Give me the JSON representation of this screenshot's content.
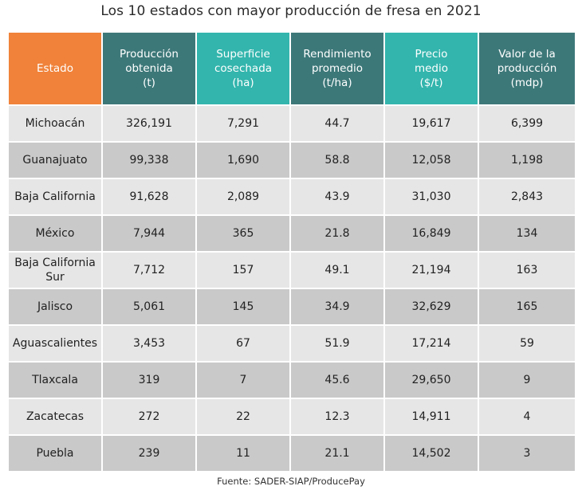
{
  "chart_data": {
    "type": "table",
    "title": "Los 10 estados con mayor producción de fresa en 2021",
    "source": "Fuente: SADER-SIAP/ProducePay",
    "columns": [
      "Estado",
      "Producción\nobtenida\n(t)",
      "Superficie\ncosechada\n(ha)",
      "Rendimiento\npromedio\n(t/ha)",
      "Precio\nmedio\n($/t)",
      "Valor de la\nproducción\n(mdp)"
    ],
    "header_colors": [
      "#f0823a",
      "#3d7879",
      "#33b5ad",
      "#3d7879",
      "#33b5ad",
      "#3d7879"
    ],
    "rows": [
      [
        "Michoacán",
        "326,191",
        "7,291",
        "44.7",
        "19,617",
        "6,399"
      ],
      [
        "Guanajuato",
        "99,338",
        "1,690",
        "58.8",
        "12,058",
        "1,198"
      ],
      [
        "Baja California",
        "91,628",
        "2,089",
        "43.9",
        "31,030",
        "2,843"
      ],
      [
        "México",
        "7,944",
        "365",
        "21.8",
        "16,849",
        "134"
      ],
      [
        "Baja California Sur",
        "7,712",
        "157",
        "49.1",
        "21,194",
        "163"
      ],
      [
        "Jalisco",
        "5,061",
        "145",
        "34.9",
        "32,629",
        "165"
      ],
      [
        "Aguascalientes",
        "3,453",
        "67",
        "51.9",
        "17,214",
        "59"
      ],
      [
        "Tlaxcala",
        "319",
        "7",
        "45.6",
        "29,650",
        "9"
      ],
      [
        "Zacatecas",
        "272",
        "22",
        "12.3",
        "14,911",
        "4"
      ],
      [
        "Puebla",
        "239",
        "11",
        "21.1",
        "14,502",
        "3"
      ]
    ]
  }
}
